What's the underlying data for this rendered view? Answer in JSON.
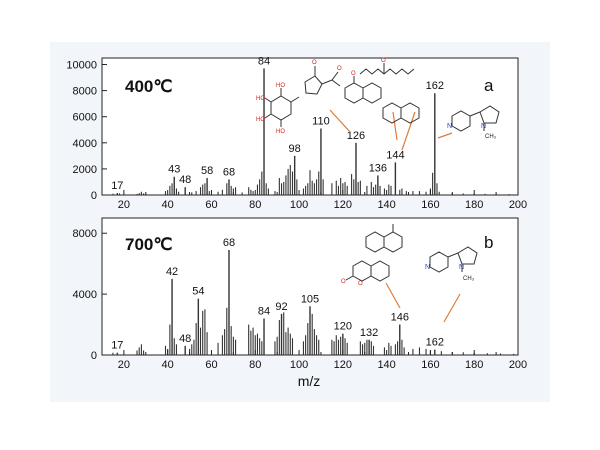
{
  "chart_data": [
    {
      "type": "bar",
      "panel_label": "a",
      "title": "400℃",
      "xlabel": "m/z",
      "ylabel": "",
      "xlim": [
        10,
        200
      ],
      "ylim": [
        0,
        10500
      ],
      "x_ticks": [
        20,
        40,
        60,
        80,
        100,
        120,
        140,
        160,
        180,
        200
      ],
      "y_ticks": [
        0,
        2000,
        4000,
        6000,
        8000,
        10000
      ],
      "peaks": [
        {
          "x": 17,
          "y": 150,
          "label": "17"
        },
        {
          "x": 43,
          "y": 1400,
          "label": "43"
        },
        {
          "x": 48,
          "y": 600,
          "label": "48"
        },
        {
          "x": 58,
          "y": 1300,
          "label": "58"
        },
        {
          "x": 68,
          "y": 1200,
          "label": "68"
        },
        {
          "x": 84,
          "y": 9700,
          "label": "84"
        },
        {
          "x": 98,
          "y": 3000,
          "label": "98"
        },
        {
          "x": 110,
          "y": 5100,
          "label": "110"
        },
        {
          "x": 126,
          "y": 4000,
          "label": "126"
        },
        {
          "x": 136,
          "y": 1500,
          "label": "136"
        },
        {
          "x": 144,
          "y": 2500,
          "label": "144"
        },
        {
          "x": 162,
          "y": 7800,
          "label": "162"
        }
      ],
      "minor_peaks": [
        {
          "x": 15,
          "y": 100
        },
        {
          "x": 18,
          "y": 120
        },
        {
          "x": 26,
          "y": 80
        },
        {
          "x": 27,
          "y": 150
        },
        {
          "x": 28,
          "y": 250
        },
        {
          "x": 29,
          "y": 120
        },
        {
          "x": 30,
          "y": 90
        },
        {
          "x": 39,
          "y": 300
        },
        {
          "x": 41,
          "y": 700
        },
        {
          "x": 42,
          "y": 900
        },
        {
          "x": 44,
          "y": 500
        },
        {
          "x": 45,
          "y": 250
        },
        {
          "x": 51,
          "y": 200
        },
        {
          "x": 53,
          "y": 300
        },
        {
          "x": 55,
          "y": 600
        },
        {
          "x": 56,
          "y": 800
        },
        {
          "x": 57,
          "y": 900
        },
        {
          "x": 59,
          "y": 300
        },
        {
          "x": 63,
          "y": 250
        },
        {
          "x": 65,
          "y": 400
        },
        {
          "x": 67,
          "y": 900
        },
        {
          "x": 69,
          "y": 700
        },
        {
          "x": 70,
          "y": 500
        },
        {
          "x": 71,
          "y": 600
        },
        {
          "x": 74,
          "y": 200
        },
        {
          "x": 77,
          "y": 600
        },
        {
          "x": 78,
          "y": 400
        },
        {
          "x": 79,
          "y": 300
        },
        {
          "x": 81,
          "y": 800
        },
        {
          "x": 82,
          "y": 1200
        },
        {
          "x": 83,
          "y": 1800
        },
        {
          "x": 85,
          "y": 900
        },
        {
          "x": 86,
          "y": 500
        },
        {
          "x": 89,
          "y": 300
        },
        {
          "x": 91,
          "y": 1300
        },
        {
          "x": 92,
          "y": 900
        },
        {
          "x": 93,
          "y": 1000
        },
        {
          "x": 94,
          "y": 1500
        },
        {
          "x": 95,
          "y": 2000
        },
        {
          "x": 96,
          "y": 2300
        },
        {
          "x": 97,
          "y": 1800
        },
        {
          "x": 99,
          "y": 1200
        },
        {
          "x": 102,
          "y": 500
        },
        {
          "x": 103,
          "y": 700
        },
        {
          "x": 104,
          "y": 900
        },
        {
          "x": 105,
          "y": 1900
        },
        {
          "x": 106,
          "y": 1100
        },
        {
          "x": 107,
          "y": 900
        },
        {
          "x": 108,
          "y": 1200
        },
        {
          "x": 109,
          "y": 1800
        },
        {
          "x": 111,
          "y": 1200
        },
        {
          "x": 115,
          "y": 900
        },
        {
          "x": 117,
          "y": 1100
        },
        {
          "x": 118,
          "y": 700
        },
        {
          "x": 119,
          "y": 1300
        },
        {
          "x": 120,
          "y": 900
        },
        {
          "x": 121,
          "y": 1000
        },
        {
          "x": 122,
          "y": 700
        },
        {
          "x": 124,
          "y": 1600
        },
        {
          "x": 125,
          "y": 1200
        },
        {
          "x": 127,
          "y": 1000
        },
        {
          "x": 128,
          "y": 1100
        },
        {
          "x": 131,
          "y": 700
        },
        {
          "x": 133,
          "y": 1000
        },
        {
          "x": 134,
          "y": 600
        },
        {
          "x": 135,
          "y": 800
        },
        {
          "x": 137,
          "y": 700
        },
        {
          "x": 139,
          "y": 500
        },
        {
          "x": 141,
          "y": 800
        },
        {
          "x": 142,
          "y": 700
        },
        {
          "x": 146,
          "y": 400
        },
        {
          "x": 147,
          "y": 500
        },
        {
          "x": 149,
          "y": 300
        },
        {
          "x": 152,
          "y": 300
        },
        {
          "x": 155,
          "y": 300
        },
        {
          "x": 158,
          "y": 250
        },
        {
          "x": 160,
          "y": 500
        },
        {
          "x": 161,
          "y": 1700
        },
        {
          "x": 163,
          "y": 900
        },
        {
          "x": 164,
          "y": 250
        },
        {
          "x": 170,
          "y": 150
        },
        {
          "x": 175,
          "y": 120
        },
        {
          "x": 180,
          "y": 100
        },
        {
          "x": 185,
          "y": 90
        },
        {
          "x": 190,
          "y": 80
        },
        {
          "x": 196,
          "y": 70
        }
      ]
    },
    {
      "type": "bar",
      "panel_label": "b",
      "title": "700℃",
      "xlabel": "m/z",
      "ylabel": "",
      "xlim": [
        10,
        200
      ],
      "ylim": [
        0,
        9000
      ],
      "x_ticks": [
        20,
        40,
        60,
        80,
        100,
        120,
        140,
        160,
        180,
        200
      ],
      "y_ticks": [
        0,
        4000,
        8000
      ],
      "peaks": [
        {
          "x": 17,
          "y": 150,
          "label": "17"
        },
        {
          "x": 42,
          "y": 5000,
          "label": "42"
        },
        {
          "x": 48,
          "y": 600,
          "label": "48"
        },
        {
          "x": 54,
          "y": 3700,
          "label": "54"
        },
        {
          "x": 68,
          "y": 6900,
          "label": "68"
        },
        {
          "x": 84,
          "y": 2400,
          "label": "84"
        },
        {
          "x": 92,
          "y": 2700,
          "label": "92"
        },
        {
          "x": 105,
          "y": 3200,
          "label": "105"
        },
        {
          "x": 120,
          "y": 1400,
          "label": "120"
        },
        {
          "x": 132,
          "y": 1000,
          "label": "132"
        },
        {
          "x": 146,
          "y": 2000,
          "label": "146"
        },
        {
          "x": 162,
          "y": 350,
          "label": "162"
        }
      ],
      "minor_peaks": [
        {
          "x": 15,
          "y": 150
        },
        {
          "x": 26,
          "y": 300
        },
        {
          "x": 27,
          "y": 500
        },
        {
          "x": 28,
          "y": 700
        },
        {
          "x": 29,
          "y": 300
        },
        {
          "x": 39,
          "y": 600
        },
        {
          "x": 40,
          "y": 400
        },
        {
          "x": 41,
          "y": 2000
        },
        {
          "x": 43,
          "y": 1100
        },
        {
          "x": 44,
          "y": 700
        },
        {
          "x": 50,
          "y": 400
        },
        {
          "x": 51,
          "y": 700
        },
        {
          "x": 52,
          "y": 1000
        },
        {
          "x": 53,
          "y": 2100
        },
        {
          "x": 55,
          "y": 1800
        },
        {
          "x": 56,
          "y": 2900
        },
        {
          "x": 57,
          "y": 3000
        },
        {
          "x": 58,
          "y": 1500
        },
        {
          "x": 63,
          "y": 800
        },
        {
          "x": 65,
          "y": 1300
        },
        {
          "x": 66,
          "y": 1700
        },
        {
          "x": 67,
          "y": 3100
        },
        {
          "x": 69,
          "y": 1900
        },
        {
          "x": 70,
          "y": 1200
        },
        {
          "x": 71,
          "y": 1000
        },
        {
          "x": 77,
          "y": 2000
        },
        {
          "x": 78,
          "y": 1600
        },
        {
          "x": 79,
          "y": 1800
        },
        {
          "x": 80,
          "y": 1300
        },
        {
          "x": 81,
          "y": 1400
        },
        {
          "x": 82,
          "y": 1100
        },
        {
          "x": 83,
          "y": 900
        },
        {
          "x": 89,
          "y": 900
        },
        {
          "x": 90,
          "y": 1200
        },
        {
          "x": 91,
          "y": 2300
        },
        {
          "x": 93,
          "y": 2800
        },
        {
          "x": 94,
          "y": 1500
        },
        {
          "x": 95,
          "y": 1800
        },
        {
          "x": 96,
          "y": 1400
        },
        {
          "x": 97,
          "y": 1100
        },
        {
          "x": 102,
          "y": 900
        },
        {
          "x": 103,
          "y": 1300
        },
        {
          "x": 104,
          "y": 2100
        },
        {
          "x": 106,
          "y": 2700
        },
        {
          "x": 107,
          "y": 1700
        },
        {
          "x": 108,
          "y": 1300
        },
        {
          "x": 109,
          "y": 1000
        },
        {
          "x": 115,
          "y": 1000
        },
        {
          "x": 116,
          "y": 900
        },
        {
          "x": 117,
          "y": 1300
        },
        {
          "x": 118,
          "y": 1000
        },
        {
          "x": 119,
          "y": 1200
        },
        {
          "x": 121,
          "y": 1100
        },
        {
          "x": 122,
          "y": 800
        },
        {
          "x": 128,
          "y": 900
        },
        {
          "x": 129,
          "y": 700
        },
        {
          "x": 130,
          "y": 800
        },
        {
          "x": 131,
          "y": 1000
        },
        {
          "x": 133,
          "y": 900
        },
        {
          "x": 134,
          "y": 600
        },
        {
          "x": 139,
          "y": 500
        },
        {
          "x": 141,
          "y": 800
        },
        {
          "x": 142,
          "y": 600
        },
        {
          "x": 144,
          "y": 700
        },
        {
          "x": 145,
          "y": 900
        },
        {
          "x": 147,
          "y": 1000
        },
        {
          "x": 148,
          "y": 500
        },
        {
          "x": 152,
          "y": 400
        },
        {
          "x": 155,
          "y": 500
        },
        {
          "x": 158,
          "y": 400
        },
        {
          "x": 160,
          "y": 300
        },
        {
          "x": 165,
          "y": 250
        },
        {
          "x": 170,
          "y": 200
        },
        {
          "x": 175,
          "y": 180
        },
        {
          "x": 180,
          "y": 150
        },
        {
          "x": 186,
          "y": 120
        },
        {
          "x": 192,
          "y": 100
        },
        {
          "x": 198,
          "y": 80
        }
      ]
    }
  ],
  "colors": {
    "axis": "#222222",
    "bars": "#333333",
    "leader_lines": "#e07a3a",
    "structures": "#333333",
    "nitrogen": "#2a3fbf",
    "oxygen": "#cc2222",
    "panel_background": "#ffffff",
    "figure_background": "#f2f5fa"
  },
  "structures": {
    "nitrogen_symbol": "N",
    "methyl_group": "CH₃",
    "hydroxyl_symbol": "HO",
    "oxygen_symbol": "O"
  }
}
